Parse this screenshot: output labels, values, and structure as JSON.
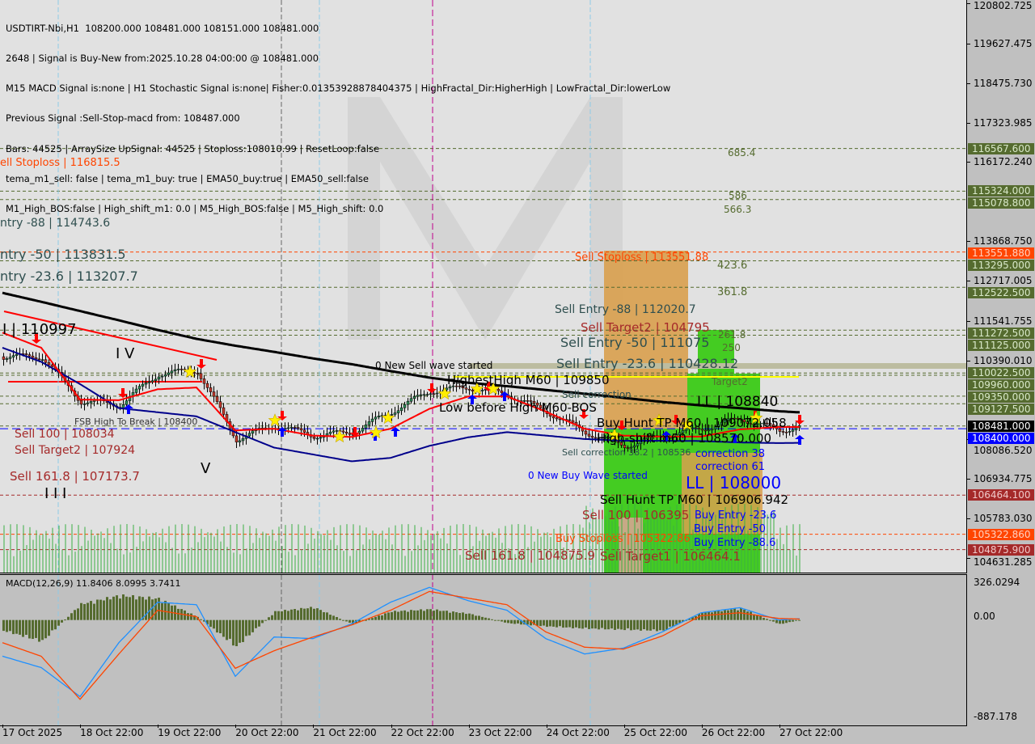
{
  "header": {
    "lines": [
      "USDTIRT-Nbi,H1  108200.000 108481.000 108151.000 108481.000",
      "2648 | Signal is Buy-New from:2025.10.28 04:00:00 @ 108481.000",
      "M15 MACD Signal is:none | H1 Stochastic Signal is:none| Fisher:0.01353928878404375 | HighFractal_Dir:HigherHigh | LowFractal_Dir:lowerLow",
      "Previous Signal :Sell-Stop-macd from: 108487.000",
      "Bars: 44525 | ArraySize UpSignal: 44525 | Stoploss:108010.99 | ResetLoop:false",
      "tema_m1_sell: false | tema_m1_buy: true | EMA50_buy:true | EMA50_sell:false",
      "M1_High_BOS:false | High_shift_m1: 0.0 | M5_High_BOS:false | M5_High_shift: 0.0"
    ]
  },
  "watermark": "MARKETZITRADE",
  "price_axis": {
    "ticks": [
      "120802.725",
      "119627.475",
      "118475.730",
      "117323.985",
      "116172.240",
      "113868.750",
      "112717.005",
      "111541.755",
      "110390.010",
      "108086.520",
      "106934.775",
      "105783.030",
      "104631.285"
    ],
    "tags": [
      {
        "text": "116567.600",
        "bg": "#556b2f",
        "fg": "#d8e8c8"
      },
      {
        "text": "115324.000",
        "bg": "#556b2f",
        "fg": "#d8e8c8"
      },
      {
        "text": "115078.800",
        "bg": "#556b2f",
        "fg": "#d8e8c8"
      },
      {
        "text": "113551.880",
        "bg": "#ff4500",
        "fg": "#ffd0c0"
      },
      {
        "text": "113295.000",
        "bg": "#556b2f",
        "fg": "#d8e8c8"
      },
      {
        "text": "112522.500",
        "bg": "#556b2f",
        "fg": "#d8e8c8"
      },
      {
        "text": "111125.000",
        "bg": "#556b2f",
        "fg": "#d8e8c8"
      },
      {
        "text": "111272.500",
        "bg": "#556b2f",
        "fg": "#d8e8c8"
      },
      {
        "text": "109960.000",
        "bg": "#556b2f",
        "fg": "#d8e8c8"
      },
      {
        "text": "110022.500",
        "bg": "#556b2f",
        "fg": "#d8e8c8"
      },
      {
        "text": "109350.000",
        "bg": "#556b2f",
        "fg": "#d8e8c8"
      },
      {
        "text": "109127.500",
        "bg": "#556b2f",
        "fg": "#d8e8c8"
      },
      {
        "text": "108481.000",
        "bg": "#000000",
        "fg": "#ffffff"
      },
      {
        "text": "108400.000",
        "bg": "#0000ff",
        "fg": "#ffffff"
      },
      {
        "text": "106464.100",
        "bg": "#a52a2a",
        "fg": "#f0c8c8"
      },
      {
        "text": "105322.860",
        "bg": "#ff4500",
        "fg": "#ffd0c0"
      },
      {
        "text": "104875.900",
        "bg": "#a52a2a",
        "fg": "#f0c8c8"
      }
    ]
  },
  "annotations": [
    {
      "text": "ell Stoploss | 116815.5",
      "color": "#ff4500"
    },
    {
      "text": "ntry -88 | 114743.6",
      "color": "#2f4f4f"
    },
    {
      "text": "ntry -50 | 113831.5",
      "color": "#2f4f4f"
    },
    {
      "text": "ntry -23.6 | 113207.7",
      "color": "#2f4f4f"
    },
    {
      "text": "I | 110997",
      "color": "#000000"
    },
    {
      "text": "I V",
      "color": "#000000"
    },
    {
      "text": "FSB High To Break | 108400",
      "color": "#333333"
    },
    {
      "text": "Sell 100 | 108034",
      "color": "#a52a2a"
    },
    {
      "text": "Sell Target2 | 107924",
      "color": "#a52a2a"
    },
    {
      "text": "Sell 161.8 | 107173.7",
      "color": "#a52a2a"
    },
    {
      "text": "I I I",
      "color": "#000000"
    },
    {
      "text": "V",
      "color": "#000000"
    },
    {
      "text": "0 New Sell wave started",
      "color": "#000000"
    },
    {
      "text": "HighestHigh   M60 | 109850",
      "color": "#000000"
    },
    {
      "text": "Low before High   M60-BOS",
      "color": "#000000"
    },
    {
      "text": "Sell Stoploss | 113551.88",
      "color": "#ff4500"
    },
    {
      "text": "Sell Entry -88 | 112020.7",
      "color": "#2f4f4f"
    },
    {
      "text": "Sell Entry -50 | 111075",
      "color": "#2f4f4f"
    },
    {
      "text": "Sell Entry -23.6 | 110428.12",
      "color": "#2f4f4f"
    },
    {
      "text": "685.4",
      "color": "#556b2f"
    },
    {
      "text": "586",
      "color": "#556b2f"
    },
    {
      "text": "566.3",
      "color": "#556b2f"
    },
    {
      "text": "423.6",
      "color": "#556b2f"
    },
    {
      "text": "361.8",
      "color": "#556b2f"
    },
    {
      "text": "261.8",
      "color": "#556b2f"
    },
    {
      "text": "250",
      "color": "#556b2f"
    },
    {
      "text": "Target2",
      "color": "#556b2f"
    },
    {
      "text": "Sell correction",
      "color": "#2f4f4f"
    },
    {
      "text": "Buy Hunt TP M60 | 109072.058",
      "color": "#000000"
    },
    {
      "text": "LL | 108840",
      "color": "#000000"
    },
    {
      "text": "High-shift m60 | 108570.000",
      "color": "#000000"
    },
    {
      "text": "Sell correction 38.2 | 108536",
      "color": "#2f4f4f"
    },
    {
      "text": "correction 38",
      "color": "#0000ff"
    },
    {
      "text": "correction 61",
      "color": "#0000ff"
    },
    {
      "text": "LL | 108000",
      "color": "#0000ff"
    },
    {
      "text": "Sell Hunt TP M60 | 106906.942",
      "color": "#000000"
    },
    {
      "text": "0 New Buy Wave started",
      "color": "#0000ff"
    },
    {
      "text": "Buy Entry -23.6",
      "color": "#0000ff"
    },
    {
      "text": "Buy Entry -50",
      "color": "#0000ff"
    },
    {
      "text": "Buy Entry -88.6",
      "color": "#0000ff"
    },
    {
      "text": "Sell 100 | 106395",
      "color": "#a52a2a"
    },
    {
      "text": "Sell Target1 | 106464.1",
      "color": "#a52a2a"
    },
    {
      "text": "Buy Stoploss | 105322.86",
      "color": "#ff4500"
    },
    {
      "text": "Sell 161.8 | 104875.9",
      "color": "#a52a2a"
    },
    {
      "text": "Sell Target2 | 104795",
      "color": "#a52a2a"
    }
  ],
  "macd": {
    "label": "MACD(12,26,9) 11.8406 8.0995 3.7411",
    "ticks": [
      "326.0294",
      "0.00",
      "-887.178"
    ]
  },
  "date_axis": [
    "17 Oct 2025",
    "18 Oct 22:00",
    "19 Oct 22:00",
    "20 Oct 22:00",
    "21 Oct 22:00",
    "22 Oct 22:00",
    "23 Oct 22:00",
    "24 Oct 22:00",
    "25 Oct 22:00",
    "26 Oct 22:00",
    "27 Oct 22:00"
  ],
  "chart_data": [
    {
      "type": "candlestick",
      "symbol": "USDTIRT-Nbi,H1",
      "ylim": [
        104631.285,
        120802.725
      ],
      "x": [
        "17 Oct 2025",
        "18 Oct 10:00",
        "18 Oct 22:00",
        "19 Oct 10:00",
        "19 Oct 22:00",
        "20 Oct 10:00",
        "20 Oct 22:00",
        "21 Oct 10:00",
        "21 Oct 22:00",
        "22 Oct 10:00",
        "22 Oct 22:00",
        "23 Oct 10:00",
        "23 Oct 22:00",
        "24 Oct 10:00",
        "24 Oct 22:00",
        "25 Oct 10:00",
        "25 Oct 22:00",
        "26 Oct 10:00",
        "26 Oct 22:00",
        "27 Oct 10:00",
        "27 Oct 22:00",
        "28 Oct 04:00"
      ],
      "series": [
        {
          "role": "close",
          "color": "#000000",
          "values": [
            110500,
            110500,
            109200,
            109100,
            110000,
            110100,
            108100,
            108500,
            108200,
            108300,
            108900,
            109500,
            109600,
            109400,
            108900,
            108300,
            107900,
            108200,
            108400,
            108700,
            108350,
            108481
          ]
        },
        {
          "role": "ma-slow",
          "color": "#000000",
          "values": [
            112360,
            112100,
            111830,
            111560,
            111280,
            111020,
            110820,
            110640,
            110450,
            110280,
            110080,
            109890,
            109740,
            109640,
            109530,
            109420,
            109300,
            109180,
            109080,
            109000,
            108910,
            108875
          ]
        },
        {
          "role": "ma-mid",
          "color": "#00008b",
          "values": [
            110760,
            110350,
            109700,
            109000,
            108880,
            108760,
            108300,
            107850,
            107650,
            107450,
            107550,
            107900,
            108150,
            108300,
            108200,
            108100,
            108050,
            108050,
            108040,
            108000,
            107980,
            107990
          ]
        },
        {
          "role": "ma-fast",
          "color": "#ff0000",
          "values": [
            111200,
            110760,
            109250,
            109230,
            109550,
            109600,
            108350,
            108400,
            108200,
            108160,
            108400,
            108980,
            109340,
            109340,
            108900,
            108400,
            108200,
            108170,
            108170,
            108380,
            108450,
            108450
          ]
        }
      ],
      "levels": [
        116567.6,
        115324,
        115078.8,
        113551.88,
        113295,
        112522.5,
        111272.5,
        111125,
        110022.5,
        109960,
        109350,
        109127.5,
        108481,
        108400,
        106464.1,
        105322.86,
        104875.9
      ]
    },
    {
      "type": "line",
      "title": "MACD(12,26,9)",
      "ylim": [
        -887.178,
        326.0294
      ],
      "series": [
        {
          "role": "macd",
          "color": "#1e90ff",
          "values": [
            -319,
            -420,
            -676,
            -200,
            157,
            135,
            -497,
            -150,
            -164,
            -33,
            157,
            288,
            171,
            86,
            -164,
            -300,
            -248,
            -105,
            64,
            109,
            0,
            11.84
          ]
        },
        {
          "role": "signal",
          "color": "#ff4500",
          "values": [
            -200,
            -320,
            -700,
            -300,
            86,
            30,
            -426,
            -271,
            -150,
            -43,
            86,
            252,
            193,
            135,
            -105,
            -240,
            -257,
            -141,
            38,
            64,
            14,
            8.1
          ]
        },
        {
          "role": "histogram",
          "color": "#556b2f",
          "values": [
            -100,
            -200,
            150,
            230,
            200,
            30,
            -250,
            80,
            120,
            -40,
            80,
            100,
            60,
            -30,
            -60,
            -80,
            -90,
            -100,
            70,
            110,
            -40,
            3.74
          ]
        }
      ]
    }
  ]
}
